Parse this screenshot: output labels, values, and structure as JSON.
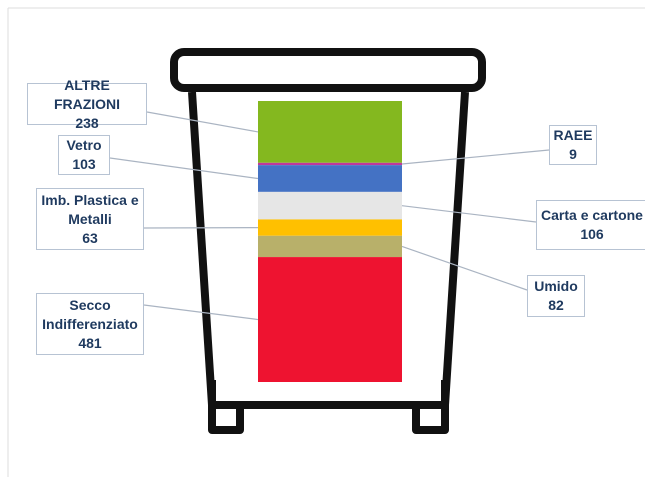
{
  "chart_data": {
    "type": "stacked-bar",
    "categories": [
      "ALTRE FRAZIONI",
      "RAEE",
      "Vetro",
      "Carta e cartone",
      "Imb. Plastica e Metalli",
      "Umido",
      "Secco Indifferenziato"
    ],
    "values": [
      238,
      9,
      103,
      106,
      63,
      82,
      481
    ],
    "colors": [
      "#84b81f",
      "#c0399a",
      "#4472c4",
      "#e6e6e6",
      "#ffc000",
      "#b8b06a",
      "#ee1330"
    ]
  }
}
